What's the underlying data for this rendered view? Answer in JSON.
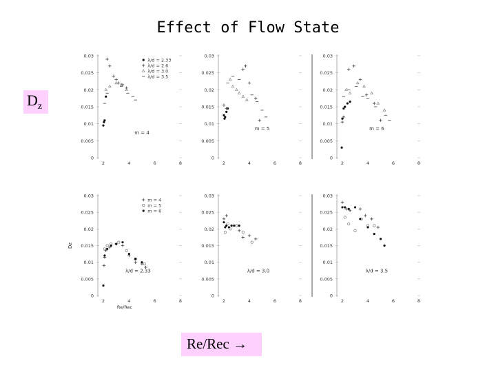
{
  "title": "Effect of Flow State",
  "dz_label": {
    "main": "D",
    "sub": "z"
  },
  "re_label": "Re/Rec →",
  "chart_data": [
    {
      "type": "scatter",
      "panel": "top-left",
      "xlim": [
        2,
        6
      ],
      "ylim": [
        0,
        0.03
      ],
      "annotation": "m = 4",
      "legend_placement": "top-right",
      "series": [
        {
          "name": "λ/d = 2.33",
          "marker": "dot",
          "points": [
            [
              2.0,
              0.0095
            ],
            [
              2.05,
              0.0105
            ],
            [
              2.1,
              0.011
            ],
            [
              2.2,
              0.018
            ]
          ]
        },
        {
          "name": "λ/d = 2.6",
          "marker": "plus",
          "points": [
            [
              2.3,
              0.029
            ],
            [
              2.5,
              0.027
            ],
            [
              2.8,
              0.024
            ],
            [
              3.0,
              0.023
            ],
            [
              3.2,
              0.022
            ],
            [
              3.5,
              0.0215
            ],
            [
              3.8,
              0.0205
            ]
          ]
        },
        {
          "name": "λ/d = 3.0",
          "marker": "triangle",
          "points": [
            [
              2.2,
              0.02
            ],
            [
              2.5,
              0.021
            ],
            [
              3.0,
              0.022
            ],
            [
              3.4,
              0.0215
            ],
            [
              3.8,
              0.02
            ]
          ]
        },
        {
          "name": "λ/d = 3.5",
          "marker": "dash",
          "points": [
            [
              2.1,
              0.016
            ],
            [
              2.3,
              0.019
            ],
            [
              3.4,
              0.021
            ],
            [
              3.9,
              0.019
            ],
            [
              4.3,
              0.018
            ],
            [
              4.5,
              0.017
            ]
          ]
        }
      ]
    },
    {
      "type": "scatter",
      "panel": "top-middle",
      "xlim": [
        2,
        6
      ],
      "ylim": [
        0,
        0.03
      ],
      "annotation": "m = 5",
      "series": [
        {
          "name": "λ/d = 2.33",
          "marker": "dot",
          "points": [
            [
              2.0,
              0.0125
            ],
            [
              2.05,
              0.0115
            ],
            [
              2.1,
              0.012
            ],
            [
              2.2,
              0.0135
            ],
            [
              2.3,
              0.0145
            ]
          ]
        },
        {
          "name": "λ/d = 2.6",
          "marker": "plus",
          "points": [
            [
              2.0,
              0.0155
            ],
            [
              2.2,
              0.0145
            ],
            [
              3.5,
              0.026
            ],
            [
              3.7,
              0.027
            ],
            [
              4.0,
              0.022
            ],
            [
              4.5,
              0.0175
            ],
            [
              4.8,
              0.011
            ]
          ]
        },
        {
          "name": "λ/d = 3.0",
          "marker": "triangle",
          "points": [
            [
              2.5,
              0.023
            ],
            [
              2.7,
              0.021
            ],
            [
              3.0,
              0.02
            ],
            [
              3.2,
              0.019
            ],
            [
              3.5,
              0.018
            ],
            [
              3.8,
              0.017
            ]
          ]
        },
        {
          "name": "λ/d = 3.5",
          "marker": "dash",
          "points": [
            [
              2.3,
              0.022
            ],
            [
              2.7,
              0.024
            ],
            [
              3.2,
              0.023
            ],
            [
              4.2,
              0.0185
            ],
            [
              4.6,
              0.0165
            ],
            [
              5.0,
              0.014
            ],
            [
              5.3,
              0.012
            ]
          ]
        }
      ]
    },
    {
      "type": "scatter",
      "panel": "top-right",
      "xlim": [
        2,
        6
      ],
      "ylim": [
        0,
        0.03
      ],
      "annotation": "m = 6",
      "series": [
        {
          "name": "λ/d = 2.33",
          "marker": "dot",
          "points": [
            [
              1.95,
              0.003
            ],
            [
              2.0,
              0.0115
            ],
            [
              2.1,
              0.0145
            ],
            [
              2.2,
              0.015
            ],
            [
              2.4,
              0.016
            ],
            [
              2.6,
              0.0165
            ]
          ]
        },
        {
          "name": "λ/d = 2.6",
          "marker": "plus",
          "points": [
            [
              2.0,
              0.0105
            ],
            [
              2.1,
              0.012
            ],
            [
              2.5,
              0.026
            ],
            [
              2.9,
              0.027
            ],
            [
              3.4,
              0.023
            ],
            [
              3.9,
              0.0185
            ],
            [
              4.5,
              0.016
            ],
            [
              5.0,
              0.011
            ]
          ]
        },
        {
          "name": "λ/d = 3.0",
          "marker": "triangle",
          "points": [
            [
              2.3,
              0.02
            ],
            [
              2.6,
              0.019
            ],
            [
              3.2,
              0.022
            ],
            [
              3.7,
              0.021
            ],
            [
              4.3,
              0.019
            ],
            [
              4.8,
              0.016
            ],
            [
              5.3,
              0.014
            ]
          ]
        },
        {
          "name": "λ/d = 3.5",
          "marker": "dash",
          "points": [
            [
              2.1,
              0.018
            ],
            [
              2.5,
              0.02
            ],
            [
              3.1,
              0.021
            ],
            [
              3.6,
              0.018
            ],
            [
              4.0,
              0.0175
            ],
            [
              4.6,
              0.015
            ],
            [
              5.4,
              0.0125
            ],
            [
              5.7,
              0.011
            ]
          ]
        }
      ]
    },
    {
      "type": "scatter",
      "panel": "bottom-left",
      "xlim": [
        2,
        6
      ],
      "ylim": [
        0,
        0.03
      ],
      "annotation": "λ/d = 2.33",
      "ylabel": "Dz",
      "xlabel": "Re/Rec",
      "legend_placement": "top-right",
      "series": [
        {
          "name": "m = 4",
          "marker": "plus",
          "points": [
            [
              2.05,
              0.009
            ],
            [
              2.1,
              0.0115
            ],
            [
              2.2,
              0.0135
            ],
            [
              2.5,
              0.0145
            ],
            [
              3.0,
              0.0155
            ],
            [
              3.5,
              0.015
            ],
            [
              4.0,
              0.012
            ],
            [
              4.5,
              0.01
            ],
            [
              5.0,
              0.0095
            ],
            [
              5.3,
              0.0085
            ]
          ]
        },
        {
          "name": "m = 5",
          "marker": "circle",
          "points": [
            [
              2.1,
              0.014
            ],
            [
              2.3,
              0.015
            ],
            [
              2.6,
              0.0155
            ],
            [
              3.2,
              0.016
            ],
            [
              3.8,
              0.0135
            ],
            [
              4.5,
              0.011
            ],
            [
              5.2,
              0.0095
            ]
          ]
        },
        {
          "name": "m = 6",
          "marker": "dot",
          "points": [
            [
              2.0,
              0.003
            ],
            [
              2.1,
              0.012
            ],
            [
              2.3,
              0.014
            ],
            [
              2.6,
              0.015
            ],
            [
              3.0,
              0.0155
            ],
            [
              3.5,
              0.016
            ],
            [
              4.0,
              0.0125
            ],
            [
              4.5,
              0.011
            ],
            [
              5.0,
              0.01
            ]
          ]
        }
      ]
    },
    {
      "type": "scatter",
      "panel": "bottom-middle",
      "xlim": [
        2,
        6
      ],
      "ylim": [
        0,
        0.03
      ],
      "annotation": "λ/d = 3.0",
      "series": [
        {
          "name": "m = 4",
          "marker": "plus",
          "points": [
            [
              2.0,
              0.023
            ],
            [
              2.2,
              0.024
            ],
            [
              3.2,
              0.0195
            ],
            [
              3.5,
              0.0175
            ],
            [
              4.0,
              0.018
            ],
            [
              4.5,
              0.017
            ]
          ]
        },
        {
          "name": "m = 5",
          "marker": "circle",
          "points": [
            [
              2.1,
              0.019
            ],
            [
              2.3,
              0.0215
            ],
            [
              2.5,
              0.02
            ],
            [
              3.0,
              0.021
            ],
            [
              3.5,
              0.019
            ],
            [
              4.2,
              0.016
            ]
          ]
        },
        {
          "name": "m = 6",
          "marker": "dot",
          "points": [
            [
              2.0,
              0.022
            ],
            [
              2.1,
              0.0205
            ],
            [
              2.2,
              0.021
            ],
            [
              2.4,
              0.0205
            ],
            [
              2.6,
              0.021
            ],
            [
              2.8,
              0.021
            ],
            [
              3.2,
              0.021
            ]
          ]
        }
      ]
    },
    {
      "type": "scatter",
      "panel": "bottom-right",
      "xlim": [
        2,
        6
      ],
      "ylim": [
        0,
        0.03
      ],
      "annotation": "λ/d = 3.5",
      "series": [
        {
          "name": "m = 4",
          "marker": "plus",
          "points": [
            [
              2.0,
              0.028
            ],
            [
              2.3,
              0.026
            ],
            [
              2.6,
              0.0255
            ],
            [
              3.4,
              0.026
            ],
            [
              3.8,
              0.024
            ],
            [
              4.3,
              0.023
            ],
            [
              4.8,
              0.0205
            ]
          ]
        },
        {
          "name": "m = 5",
          "marker": "circle",
          "points": [
            [
              2.2,
              0.0235
            ],
            [
              2.5,
              0.0215
            ],
            [
              3.0,
              0.0195
            ],
            [
              3.5,
              0.023
            ],
            [
              4.0,
              0.021
            ],
            [
              4.5,
              0.021
            ]
          ]
        },
        {
          "name": "m = 6",
          "marker": "dot",
          "points": [
            [
              2.0,
              0.0265
            ],
            [
              2.2,
              0.0265
            ],
            [
              2.5,
              0.026
            ],
            [
              3.0,
              0.0265
            ],
            [
              3.4,
              0.023
            ],
            [
              4.0,
              0.0205
            ],
            [
              4.5,
              0.0185
            ],
            [
              5.0,
              0.017
            ],
            [
              5.3,
              0.015
            ]
          ]
        }
      ]
    }
  ]
}
